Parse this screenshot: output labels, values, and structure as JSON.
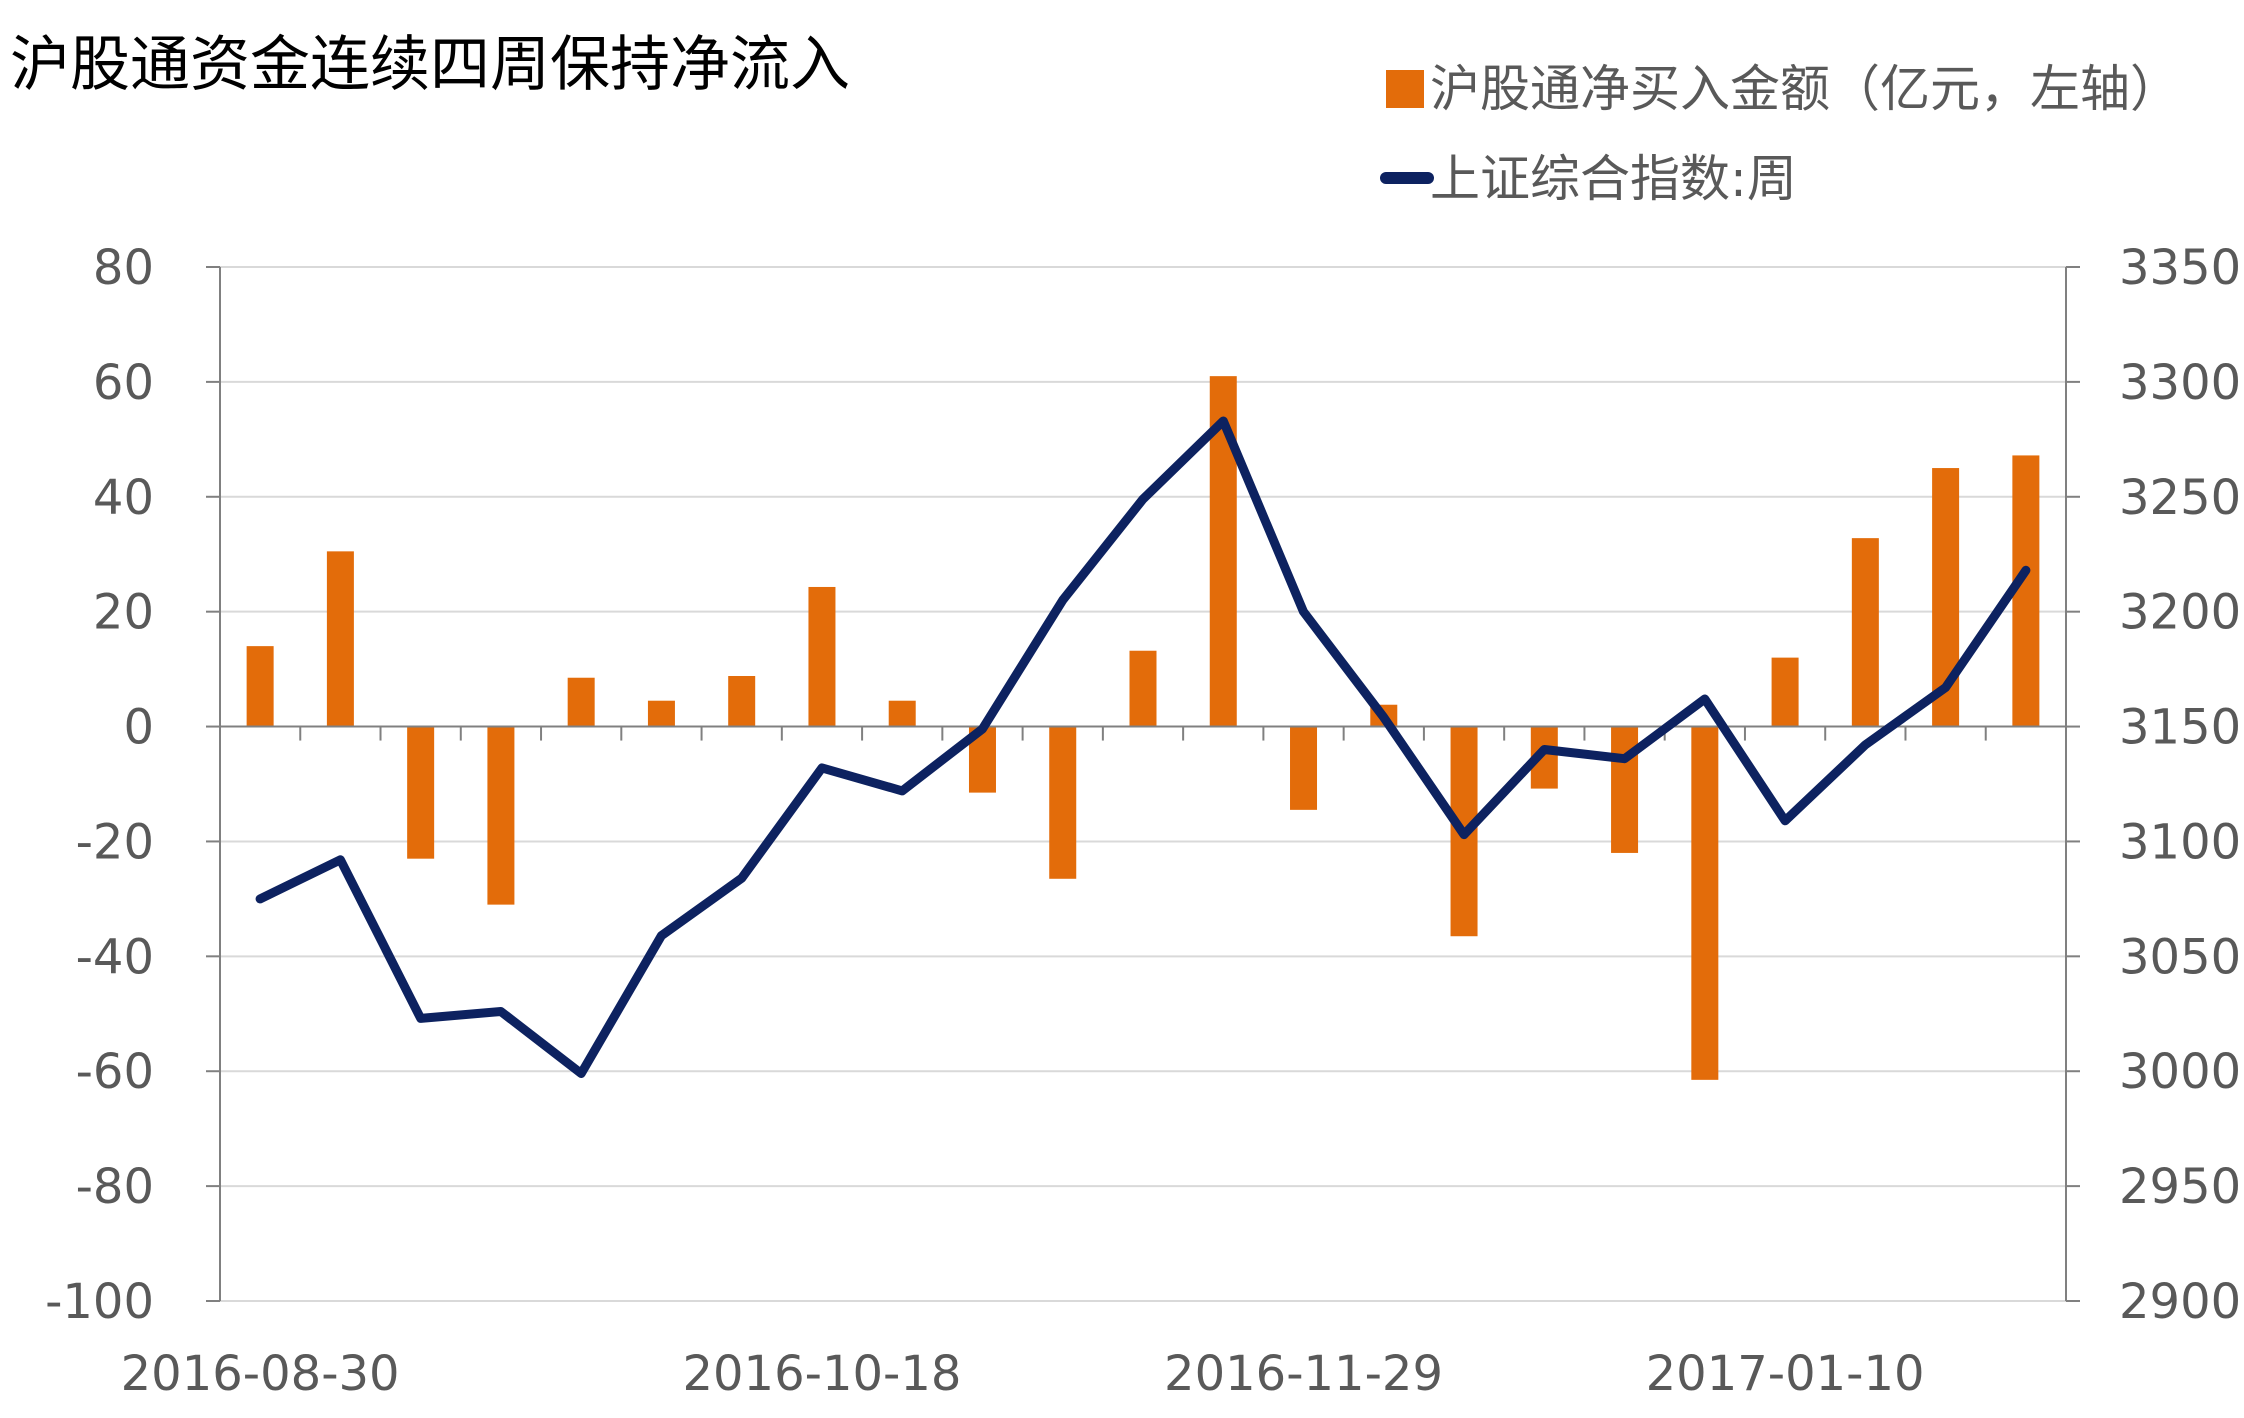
{
  "chart_data": {
    "type": "bar+line",
    "title": "沪股通资金连续四周保持净流入",
    "legend": {
      "placement": "top-right",
      "items": [
        {
          "label": "沪股通净买入金额（亿元，左轴）",
          "marker": "bar",
          "color": "#e36c0a"
        },
        {
          "label": "上证综合指数:周",
          "marker": "line",
          "color": "#0d2260"
        }
      ]
    },
    "x_tick_labels": [
      "2016-08-30",
      "2016-10-18",
      "2016-11-29",
      "2017-01-10"
    ],
    "x_tick_label_indices": [
      0,
      7,
      13,
      19
    ],
    "n_points": 23,
    "left_axis": {
      "min": -100,
      "max": 80,
      "step": 20,
      "ticks": [
        80,
        60,
        40,
        20,
        0,
        -20,
        -40,
        -60,
        -80,
        -100
      ]
    },
    "right_axis": {
      "min": 2900,
      "max": 3350,
      "step": 50,
      "ticks": [
        3350,
        3300,
        3250,
        3200,
        3150,
        3100,
        3050,
        3000,
        2950,
        2900
      ]
    },
    "grid": true,
    "series": [
      {
        "name": "沪股通净买入金额（亿元，左轴）",
        "type": "bar",
        "axis": "left",
        "color": "#e36c0a",
        "values": [
          14,
          30.5,
          -23,
          -31,
          8.5,
          4.5,
          8.8,
          24.3,
          4.5,
          -11.5,
          -26.5,
          13.2,
          61,
          -14.5,
          3.8,
          -36.5,
          -10.8,
          -22,
          -61.5,
          12,
          32.8,
          45,
          47.2
        ]
      },
      {
        "name": "上证综合指数:周",
        "type": "line",
        "axis": "right",
        "color": "#0d2260",
        "values": [
          3075,
          3092,
          3023,
          3026,
          2999,
          3059,
          3084,
          3132,
          3122,
          3149,
          3205,
          3249,
          3283,
          3200,
          3154,
          3103,
          3140,
          3136,
          3162,
          3109,
          3142,
          3167,
          3218
        ]
      }
    ]
  }
}
